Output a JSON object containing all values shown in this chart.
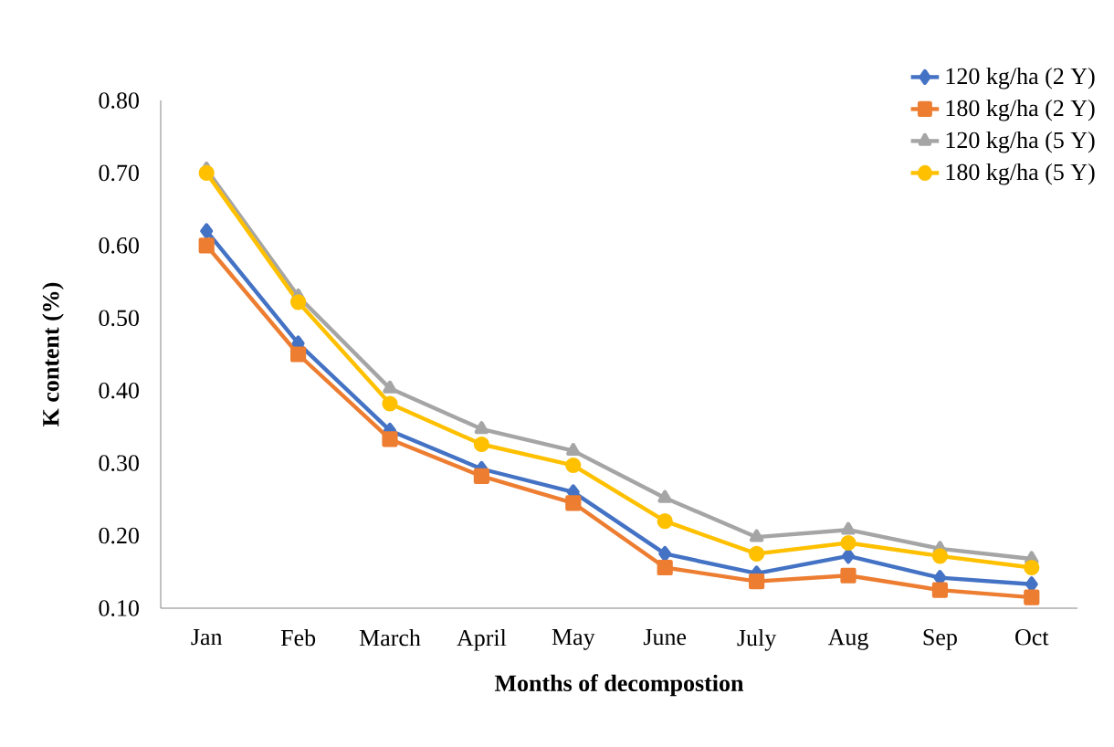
{
  "chart_data": {
    "type": "line",
    "xlabel": "Months of decompostion",
    "ylabel": "K content (%)",
    "categories": [
      "Jan",
      "Feb",
      "March",
      "April",
      "May",
      "June",
      "July",
      "Aug",
      "Sep",
      "Oct"
    ],
    "series": [
      {
        "name": "120 kg/ha (2 Y)",
        "color": "#4472c4",
        "marker": "diamond",
        "values": [
          0.62,
          0.465,
          0.345,
          0.292,
          0.26,
          0.175,
          0.148,
          0.172,
          0.142,
          0.133
        ]
      },
      {
        "name": "180 kg/ha (2 Y)",
        "color": "#ed7d31",
        "marker": "square",
        "values": [
          0.6,
          0.45,
          0.333,
          0.282,
          0.245,
          0.156,
          0.137,
          0.145,
          0.125,
          0.115
        ]
      },
      {
        "name": "120 kg/ha (5 Y)",
        "color": "#a5a5a5",
        "marker": "triangle",
        "values": [
          0.705,
          0.53,
          0.403,
          0.347,
          0.317,
          0.252,
          0.198,
          0.208,
          0.182,
          0.168
        ]
      },
      {
        "name": "180 kg/ha (5 Y)",
        "color": "#ffc000",
        "marker": "circle",
        "values": [
          0.7,
          0.522,
          0.382,
          0.326,
          0.297,
          0.22,
          0.175,
          0.19,
          0.172,
          0.156
        ]
      }
    ],
    "ylim": [
      0.1,
      0.8
    ],
    "yticks": [
      {
        "value": 0.1,
        "label": "0.10"
      },
      {
        "value": 0.2,
        "label": "0.20"
      },
      {
        "value": 0.3,
        "label": "0.30"
      },
      {
        "value": 0.4,
        "label": "0.40"
      },
      {
        "value": 0.5,
        "label": "0.50"
      },
      {
        "value": 0.6,
        "label": "0.60"
      },
      {
        "value": 0.7,
        "label": "0.70"
      },
      {
        "value": 0.8,
        "label": "0.80"
      }
    ],
    "grid": false,
    "legend": "top right",
    "line_style": "solid"
  }
}
